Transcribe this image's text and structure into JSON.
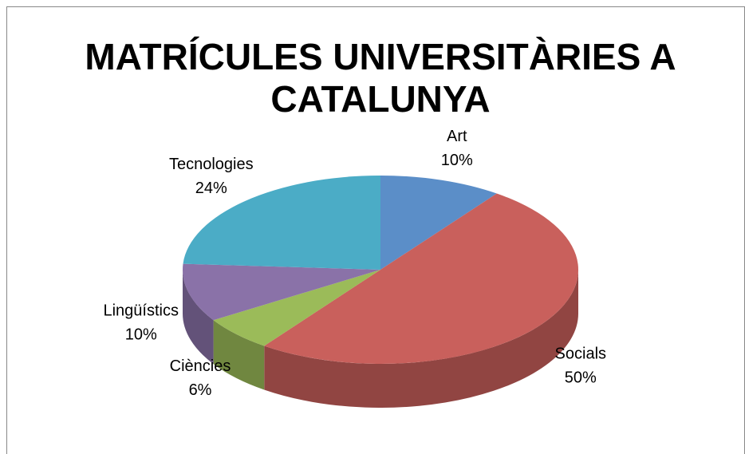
{
  "chart_data": {
    "type": "pie",
    "title": "MATRÍCULES UNIVERSITÀRIES A CATALUNYA",
    "categories": [
      "Art",
      "Socials",
      "Ciències",
      "Lingüístics",
      "Tecnologies"
    ],
    "values": [
      10,
      50,
      6,
      10,
      24
    ],
    "value_labels": [
      "10%",
      "50%",
      "6%",
      "10%",
      "24%"
    ],
    "colors": [
      "#5b8ec8",
      "#c9605c",
      "#9bbb59",
      "#8a72a8",
      "#4bacc6"
    ]
  }
}
